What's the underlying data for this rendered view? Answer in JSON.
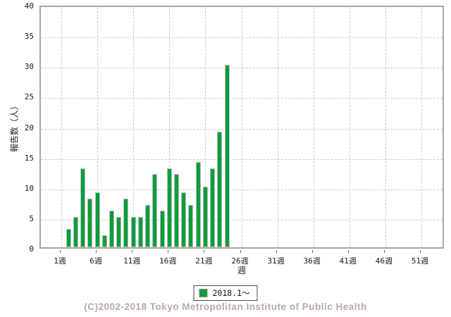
{
  "chart_data": {
    "type": "bar",
    "title": "",
    "xlabel": "週",
    "ylabel": "報告数（人）",
    "ylim": [
      0,
      40
    ],
    "yticks": [
      0,
      5,
      10,
      15,
      20,
      25,
      30,
      35,
      40
    ],
    "x_total_weeks": 52,
    "xtick_weeks": [
      1,
      6,
      11,
      16,
      21,
      26,
      31,
      36,
      41,
      46,
      51
    ],
    "xtick_labels": [
      "1週",
      "6週",
      "11週",
      "16週",
      "21週",
      "26週",
      "31週",
      "36週",
      "41週",
      "46週",
      "51週"
    ],
    "grid": true,
    "legend_position": "bottom",
    "series": [
      {
        "name": "2018.1～",
        "color": "#0a9d3a",
        "points": [
          {
            "week": 2,
            "value": 3
          },
          {
            "week": 3,
            "value": 5
          },
          {
            "week": 4,
            "value": 13
          },
          {
            "week": 5,
            "value": 8
          },
          {
            "week": 6,
            "value": 9
          },
          {
            "week": 7,
            "value": 2
          },
          {
            "week": 8,
            "value": 6
          },
          {
            "week": 9,
            "value": 5
          },
          {
            "week": 10,
            "value": 8
          },
          {
            "week": 11,
            "value": 5
          },
          {
            "week": 12,
            "value": 5
          },
          {
            "week": 13,
            "value": 7
          },
          {
            "week": 14,
            "value": 12
          },
          {
            "week": 15,
            "value": 6
          },
          {
            "week": 16,
            "value": 13
          },
          {
            "week": 17,
            "value": 12
          },
          {
            "week": 18,
            "value": 9
          },
          {
            "week": 19,
            "value": 7
          },
          {
            "week": 20,
            "value": 14
          },
          {
            "week": 21,
            "value": 10
          },
          {
            "week": 22,
            "value": 13
          },
          {
            "week": 23,
            "value": 19
          },
          {
            "week": 24,
            "value": 30
          }
        ]
      }
    ]
  },
  "axis": {
    "y_title": "報告数（人）",
    "x_title": "週"
  },
  "legend": {
    "label": "2018.1～",
    "swatch_color": "#0a9d3a"
  },
  "footer": {
    "copyright": "(C)2002-2018 Tokyo Metropolitan Institute of Public Health"
  },
  "colors": {
    "bar_fill": "#0a9d3a",
    "bar_border": "#bcbcbc",
    "grid": "#cccccc",
    "plot_border": "#a8a8a8",
    "footer_text": "#b8a9ab"
  }
}
